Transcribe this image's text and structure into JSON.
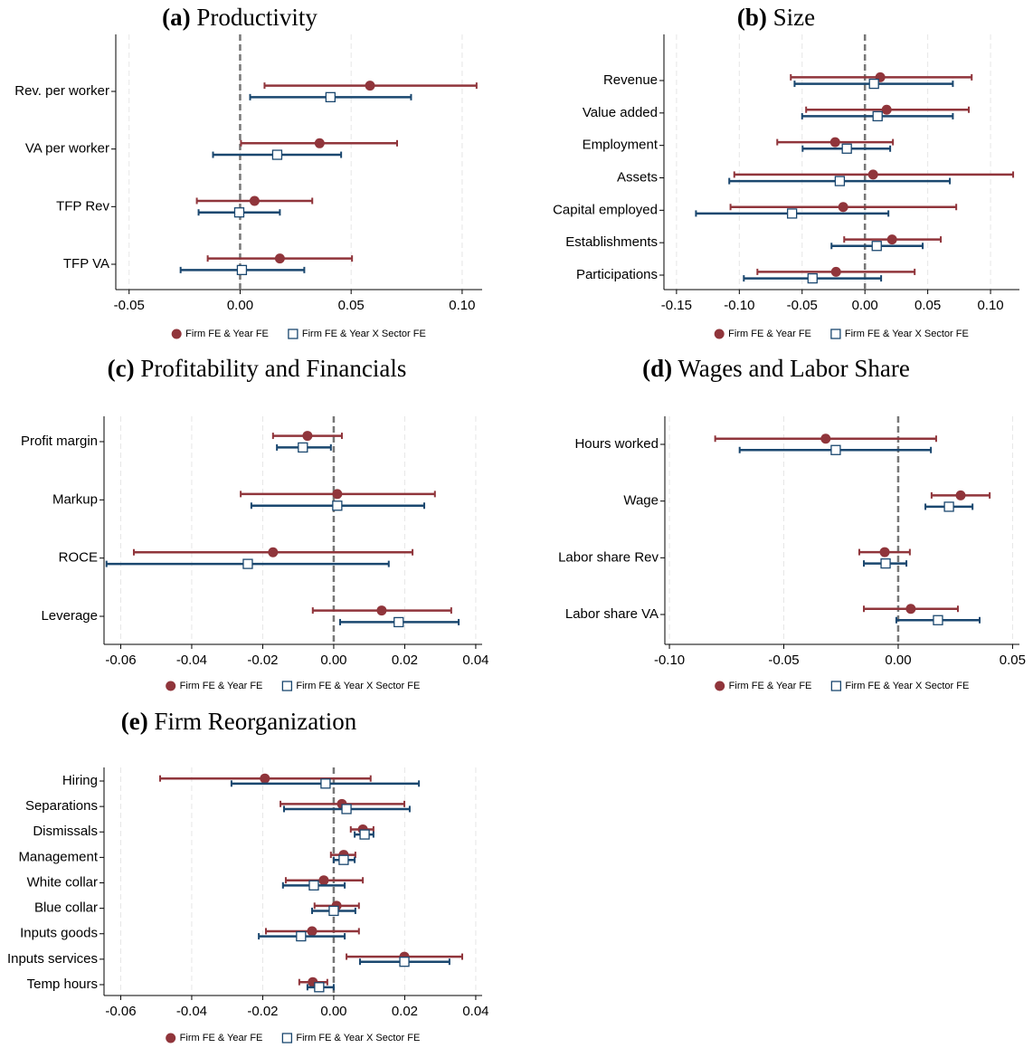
{
  "chart_data": [
    {
      "type": "dot",
      "panel": "(a)",
      "title": "Productivity",
      "categories": [
        "Rev. per worker",
        "VA per worker",
        "TFP Rev",
        "TFP VA"
      ],
      "series": [
        {
          "name": "Firm FE & Year FE",
          "color": "#90353b",
          "marker": "circle",
          "values": [
            0.0585,
            0.0358,
            0.0065,
            0.0179
          ],
          "ci_low": [
            0.011,
            0.0004,
            -0.0195,
            -0.0146
          ],
          "ci_high": [
            0.1065,
            0.0707,
            0.0325,
            0.0504
          ]
        },
        {
          "name": "Firm FE & Year X Sector FE",
          "color": "#1a476f",
          "marker": "square",
          "values": [
            0.0407,
            0.0167,
            -0.0004,
            0.0008
          ],
          "ci_low": [
            0.0045,
            -0.0122,
            -0.0187,
            -0.0268
          ],
          "ci_high": [
            0.077,
            0.0455,
            0.0179,
            0.0289
          ]
        }
      ],
      "xlim": [
        -0.056,
        0.109
      ],
      "xticks": [
        {
          "value": -0.05,
          "label": "-0.05"
        },
        {
          "value": 0,
          "label": "0.00"
        },
        {
          "value": 0.05,
          "label": "0.05"
        },
        {
          "value": 0.1,
          "label": "0.10"
        }
      ],
      "reference_line": 0,
      "grid": true
    },
    {
      "type": "dot",
      "panel": "(b)",
      "title": "Size",
      "categories": [
        "Revenue",
        "Value added",
        "Employment",
        "Assets",
        "Capital employed",
        "Establishments",
        "Participations"
      ],
      "series": [
        {
          "name": "Firm FE & Year FE",
          "color": "#90353b",
          "marker": "circle",
          "values": [
            0.0122,
            0.0173,
            -0.0237,
            0.0065,
            -0.0173,
            0.0216,
            -0.023
          ],
          "ci_low": [
            -0.059,
            -0.0468,
            -0.0698,
            -0.104,
            -0.107,
            -0.0165,
            -0.0856
          ],
          "ci_high": [
            0.085,
            0.0827,
            0.0223,
            0.118,
            0.0727,
            0.0604,
            0.0396
          ]
        },
        {
          "name": "Firm FE & Year X Sector FE",
          "color": "#1a476f",
          "marker": "square",
          "values": [
            0.0072,
            0.0101,
            -0.0144,
            -0.02,
            -0.058,
            0.0094,
            -0.0417
          ],
          "ci_low": [
            -0.056,
            -0.05,
            -0.0496,
            -0.108,
            -0.1345,
            -0.0266,
            -0.0964
          ],
          "ci_high": [
            0.07,
            0.07,
            0.0201,
            0.0676,
            0.0187,
            0.046,
            0.0129
          ]
        }
      ],
      "xlim": [
        -0.16,
        0.123
      ],
      "xticks": [
        {
          "value": -0.15,
          "label": "-0.15"
        },
        {
          "value": -0.1,
          "label": "-0.10"
        },
        {
          "value": -0.05,
          "label": "-0.05"
        },
        {
          "value": 0,
          "label": "0.00"
        },
        {
          "value": 0.05,
          "label": "0.05"
        },
        {
          "value": 0.1,
          "label": "0.10"
        }
      ],
      "reference_line": 0,
      "grid": true
    },
    {
      "type": "dot",
      "panel": "(c)",
      "title": "Profitability and Financials",
      "categories": [
        "Profit margin",
        "Markup",
        "ROCE",
        "Leverage"
      ],
      "series": [
        {
          "name": "Firm FE & Year FE",
          "color": "#90353b",
          "marker": "circle",
          "values": [
            -0.0074,
            0.001,
            -0.0171,
            0.0135
          ],
          "ci_low": [
            -0.0171,
            -0.0262,
            -0.0563,
            -0.0059
          ],
          "ci_high": [
            0.0023,
            0.0285,
            0.0222,
            0.0331
          ]
        },
        {
          "name": "Firm FE & Year X Sector FE",
          "color": "#1a476f",
          "marker": "square",
          "values": [
            -0.0087,
            0.001,
            -0.0242,
            0.0183
          ],
          "ci_low": [
            -0.016,
            -0.0232,
            -0.064,
            0.0018
          ],
          "ci_high": [
            -0.0008,
            0.0255,
            0.0155,
            0.0352
          ]
        }
      ],
      "xlim": [
        -0.0647,
        0.0418
      ],
      "xticks": [
        {
          "value": -0.06,
          "label": "-0.06"
        },
        {
          "value": -0.04,
          "label": "-0.04"
        },
        {
          "value": -0.02,
          "label": "-0.02"
        },
        {
          "value": 0,
          "label": "0.00"
        },
        {
          "value": 0.02,
          "label": "0.02"
        },
        {
          "value": 0.04,
          "label": "0.04"
        }
      ],
      "reference_line": 0,
      "grid": true
    },
    {
      "type": "dot",
      "panel": "(d)",
      "title": "Wages and Labor Share",
      "categories": [
        "Hours worked",
        "Wage",
        "Labor share Rev",
        "Labor share VA"
      ],
      "series": [
        {
          "name": "Firm FE & Year FE",
          "color": "#90353b",
          "marker": "circle",
          "values": [
            -0.0317,
            0.0273,
            -0.0059,
            0.0055
          ],
          "ci_low": [
            -0.08,
            0.0146,
            -0.017,
            -0.015
          ],
          "ci_high": [
            0.0166,
            0.04,
            0.0051,
            0.0261
          ]
        },
        {
          "name": "Firm FE & Year X Sector FE",
          "color": "#1a476f",
          "marker": "square",
          "values": [
            -0.0273,
            0.0222,
            -0.0055,
            0.0174
          ],
          "ci_low": [
            -0.0693,
            0.0119,
            -0.015,
            -0.0008
          ],
          "ci_high": [
            0.0143,
            0.0325,
            0.0036,
            0.0356
          ]
        }
      ],
      "xlim": [
        -0.102,
        0.053
      ],
      "xticks": [
        {
          "value": -0.1,
          "label": "-0.10"
        },
        {
          "value": -0.05,
          "label": "-0.05"
        },
        {
          "value": 0,
          "label": "0.00"
        },
        {
          "value": 0.05,
          "label": "0.05"
        }
      ],
      "reference_line": 0,
      "grid": true
    },
    {
      "type": "dot",
      "panel": "(e)",
      "title": "Firm Reorganization",
      "categories": [
        "Hiring",
        "Separations",
        "Dismissals",
        "Management",
        "White collar",
        "Blue collar",
        "Inputs goods",
        "Inputs services",
        "Temp hours"
      ],
      "series": [
        {
          "name": "Firm FE & Year FE",
          "color": "#90353b",
          "marker": "circle",
          "values": [
            -0.0194,
            0.0023,
            0.0082,
            0.0028,
            -0.0028,
            0.0008,
            -0.0061,
            0.0199,
            -0.0059
          ],
          "ci_low": [
            -0.0489,
            -0.015,
            0.0048,
            -0.0008,
            -0.0135,
            -0.0054,
            -0.0191,
            0.0036,
            -0.0097
          ],
          "ci_high": [
            0.0104,
            0.0199,
            0.0112,
            0.0061,
            0.0082,
            0.0071,
            0.0071,
            0.0362,
            -0.0018
          ]
        },
        {
          "name": "Firm FE & Year X Sector FE",
          "color": "#1a476f",
          "marker": "square",
          "values": [
            -0.0023,
            0.0036,
            0.0087,
            0.0028,
            -0.0056,
            0,
            -0.0092,
            0.0199,
            -0.0041
          ],
          "ci_low": [
            -0.0288,
            -0.014,
            0.0059,
            0,
            -0.0143,
            -0.0061,
            -0.0211,
            0.0074,
            -0.0074
          ],
          "ci_high": [
            0.024,
            0.0214,
            0.0112,
            0.0059,
            0.0031,
            0.0061,
            0.0031,
            0.0326,
            0
          ]
        }
      ],
      "xlim": [
        -0.0647,
        0.0418
      ],
      "xticks": [
        {
          "value": -0.06,
          "label": "-0.06"
        },
        {
          "value": -0.04,
          "label": "-0.04"
        },
        {
          "value": -0.02,
          "label": "-0.02"
        },
        {
          "value": 0,
          "label": "0.00"
        },
        {
          "value": 0.02,
          "label": "0.02"
        },
        {
          "value": 0.04,
          "label": "0.04"
        }
      ],
      "reference_line": 0,
      "grid": true
    }
  ]
}
